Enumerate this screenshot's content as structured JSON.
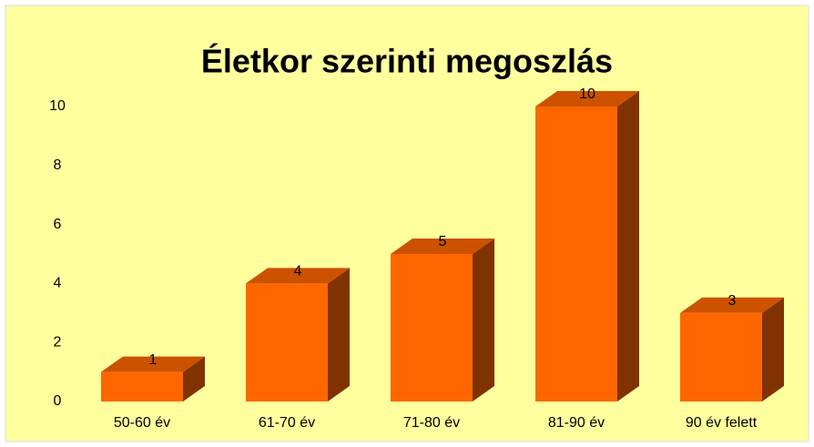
{
  "chart_data": {
    "type": "bar3d",
    "title": "Életkor szerinti megoszlás",
    "categories": [
      "50-60 év",
      "61-70 év",
      "71-80 év",
      "81-90 év",
      "90 év felett"
    ],
    "values": [
      1,
      4,
      5,
      10,
      3
    ],
    "color": "#ff6600",
    "ylim": [
      0,
      10
    ],
    "yticks": [
      0,
      2,
      4,
      6,
      8,
      10
    ],
    "grid": false
  }
}
